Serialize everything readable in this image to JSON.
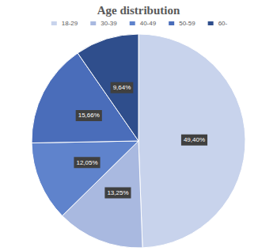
{
  "chart_data": {
    "type": "pie",
    "title": "Age distribution",
    "categories": [
      "18-29",
      "30-39",
      "40-49",
      "50-59",
      "60-"
    ],
    "values": [
      49.4,
      13.25,
      12.05,
      15.66,
      9.64
    ],
    "value_labels": [
      "49,40%",
      "13,25%",
      "12,05%",
      "15,66%",
      "9,64%"
    ],
    "colors": [
      "#c8d3ec",
      "#a9b9e0",
      "#5f83cc",
      "#4a6dba",
      "#2f4e8c"
    ],
    "data_labels": true,
    "legend": "top"
  }
}
